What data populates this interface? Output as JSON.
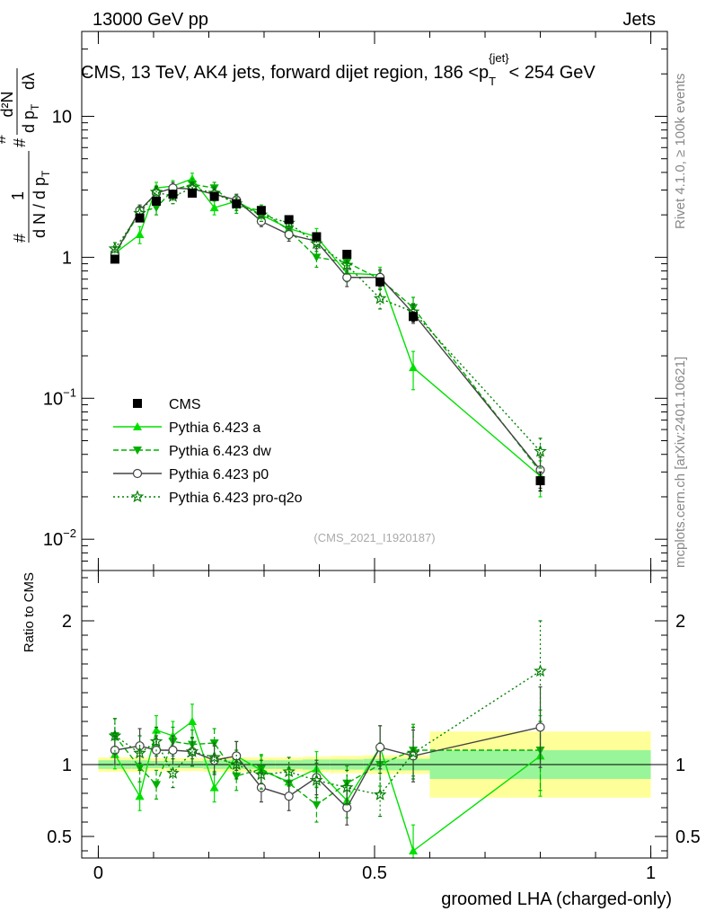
{
  "header": {
    "left": "13000 GeV pp",
    "right": "Jets"
  },
  "side_labels": {
    "rivet": "Rivet 4.1.0, ≥ 100k events",
    "mcplots": "mcplots.cern.ch [arXiv:2401.10621]"
  },
  "chart_data": {
    "type": "line",
    "title": "CMS, 13 TeV, AK4 jets, forward dijet region, 186 <p_T^{jet}< 254 GeV",
    "title_parts": {
      "main": "CMS, 13 TeV, AK4 jets, forward dijet region, 186 <p",
      "sub": "T",
      "sup": "{jet}",
      "tail": "< 254 GeV"
    },
    "watermark": "(CMS_2021_I1920187)",
    "xlabel": "groomed LHA (charged-only)",
    "ylabel": "1/(dN/dp_T) d²N/(dp_T dλ)",
    "ylabel_parts": {
      "hash": "#",
      "one": "1",
      "den": "d N / d p",
      "T": "T",
      "d2N": "d²N",
      "den2": "d p",
      "dl": "dλ"
    },
    "ratio_ylabel": "Ratio to CMS",
    "xlim": [
      -0.03,
      1.03
    ],
    "ylim": [
      0.006,
      40
    ],
    "yscale": "log",
    "ratio_ylim": [
      0.35,
      2.35
    ],
    "x_ticks": [
      0,
      0.5,
      1
    ],
    "x_tick_labels": [
      "0",
      "0.5",
      "1"
    ],
    "y_ticks": [
      0.01,
      0.1,
      1,
      10
    ],
    "y_tick_labels": [
      {
        "base": "10",
        "exp": "−2"
      },
      {
        "base": "10",
        "exp": "−1"
      },
      {
        "base": "1",
        "exp": ""
      },
      {
        "base": "10",
        "exp": ""
      }
    ],
    "ratio_ticks": [
      0.5,
      1,
      2
    ],
    "ratio_tick_labels": [
      "0.5",
      "1",
      "2"
    ],
    "x": [
      0.03,
      0.075,
      0.105,
      0.135,
      0.17,
      0.21,
      0.25,
      0.295,
      0.345,
      0.395,
      0.45,
      0.51,
      0.57,
      0.8
    ],
    "bin_edges": [
      0,
      0.06,
      0.09,
      0.12,
      0.15,
      0.19,
      0.23,
      0.27,
      0.32,
      0.37,
      0.42,
      0.48,
      0.54,
      0.6,
      1.0
    ],
    "band_half_width_green": [
      0.03,
      0.03,
      0.025,
      0.025,
      0.025,
      0.03,
      0.03,
      0.03,
      0.03,
      0.035,
      0.035,
      0.04,
      0.04,
      0.1
    ],
    "band_half_width_yellow": [
      0.05,
      0.05,
      0.045,
      0.045,
      0.045,
      0.05,
      0.05,
      0.05,
      0.05,
      0.055,
      0.06,
      0.065,
      0.065,
      0.23
    ],
    "series": [
      {
        "name": "CMS",
        "marker": "square",
        "color": "#000000",
        "dash": "",
        "values": [
          0.97,
          1.9,
          2.5,
          2.8,
          2.85,
          2.7,
          2.4,
          2.15,
          1.85,
          1.4,
          1.05,
          0.67,
          0.38,
          0.026
        ],
        "errors": [
          0.03,
          0.06,
          0.08,
          0.08,
          0.08,
          0.08,
          0.07,
          0.06,
          0.06,
          0.05,
          0.04,
          0.03,
          0.03,
          0.004
        ],
        "ratio": [
          1,
          1,
          1,
          1,
          1,
          1,
          1,
          1,
          1,
          1,
          1,
          1,
          1,
          1
        ],
        "ratio_err": [
          0,
          0,
          0,
          0,
          0,
          0,
          0,
          0,
          0,
          0,
          0,
          0,
          0,
          0
        ]
      },
      {
        "name": "Pythia 6.423 a",
        "marker": "triangle-up",
        "color": "#00e000",
        "dash": "",
        "values": [
          1.07,
          1.45,
          3.1,
          3.2,
          3.6,
          2.25,
          2.5,
          2.0,
          1.6,
          1.4,
          0.77,
          0.75,
          0.165,
          0.028
        ],
        "errors": [
          0.12,
          0.2,
          0.3,
          0.3,
          0.35,
          0.25,
          0.25,
          0.2,
          0.2,
          0.2,
          0.1,
          0.1,
          0.05,
          0.008
        ],
        "ratio": [
          1.07,
          0.78,
          1.24,
          1.2,
          1.3,
          0.84,
          1.06,
          0.96,
          0.88,
          0.97,
          0.75,
          1.12,
          0.4,
          1.06
        ],
        "ratio_err": [
          0.1,
          0.1,
          0.1,
          0.1,
          0.12,
          0.1,
          0.1,
          0.1,
          0.1,
          0.12,
          0.12,
          0.15,
          0.18,
          0.28
        ]
      },
      {
        "name": "Pythia 6.423 dw",
        "marker": "triangle-down",
        "color": "#00b000",
        "dash": "6,3",
        "values": [
          1.05,
          2.1,
          2.25,
          3.0,
          3.3,
          3.1,
          2.3,
          2.15,
          1.55,
          1.0,
          0.92,
          0.7,
          0.44,
          0.03
        ],
        "errors": [
          0.12,
          0.2,
          0.25,
          0.3,
          0.3,
          0.3,
          0.25,
          0.2,
          0.2,
          0.15,
          0.12,
          0.1,
          0.08,
          0.008
        ],
        "ratio": [
          1.2,
          0.98,
          0.86,
          1.16,
          1.14,
          1.15,
          0.92,
          0.97,
          0.87,
          0.72,
          0.87,
          1.0,
          1.1,
          1.1
        ],
        "ratio_err": [
          0.12,
          0.1,
          0.1,
          0.1,
          0.1,
          0.1,
          0.1,
          0.1,
          0.1,
          0.12,
          0.12,
          0.15,
          0.18,
          0.28
        ]
      },
      {
        "name": "Pythia 6.423 p0",
        "marker": "circle-open",
        "color": "#444444",
        "dash": "",
        "values": [
          1.06,
          2.15,
          2.85,
          3.1,
          3.05,
          2.8,
          2.55,
          1.8,
          1.45,
          1.3,
          0.72,
          0.72,
          0.4,
          0.031
        ],
        "errors": [
          0.12,
          0.2,
          0.3,
          0.3,
          0.3,
          0.25,
          0.25,
          0.15,
          0.15,
          0.15,
          0.1,
          0.1,
          0.06,
          0.008
        ],
        "ratio": [
          1.1,
          1.13,
          1.1,
          1.1,
          1.09,
          1.03,
          1.06,
          0.84,
          0.78,
          0.91,
          0.7,
          1.12,
          1.06,
          1.26
        ],
        "ratio_err": [
          0.1,
          0.12,
          0.1,
          0.1,
          0.1,
          0.1,
          0.1,
          0.1,
          0.1,
          0.12,
          0.12,
          0.15,
          0.18,
          0.28
        ]
      },
      {
        "name": "Pythia 6.423 pro-q2o",
        "marker": "star-open",
        "color": "#008000",
        "dash": "2,3",
        "values": [
          1.15,
          2.05,
          2.9,
          2.7,
          3.1,
          2.85,
          2.4,
          2.0,
          1.75,
          1.25,
          0.88,
          0.51,
          0.41,
          0.042
        ],
        "errors": [
          0.12,
          0.2,
          0.3,
          0.3,
          0.3,
          0.3,
          0.25,
          0.2,
          0.2,
          0.15,
          0.12,
          0.08,
          0.06,
          0.01
        ],
        "ratio": [
          1.2,
          1.08,
          1.16,
          0.94,
          1.09,
          1.05,
          1.0,
          0.93,
          0.95,
          0.89,
          0.84,
          0.79,
          1.08,
          1.65
        ],
        "ratio_err": [
          0.12,
          0.12,
          0.1,
          0.1,
          0.1,
          0.1,
          0.1,
          0.1,
          0.1,
          0.12,
          0.12,
          0.15,
          0.18,
          0.35
        ]
      }
    ],
    "legend": [
      "CMS",
      "Pythia 6.423 a",
      "Pythia 6.423 dw",
      "Pythia 6.423 p0",
      "Pythia 6.423 pro-q2o"
    ],
    "legend_position": "lower-left",
    "colors": {
      "band_green": "#99f599",
      "band_yellow": "#ffff99"
    }
  }
}
